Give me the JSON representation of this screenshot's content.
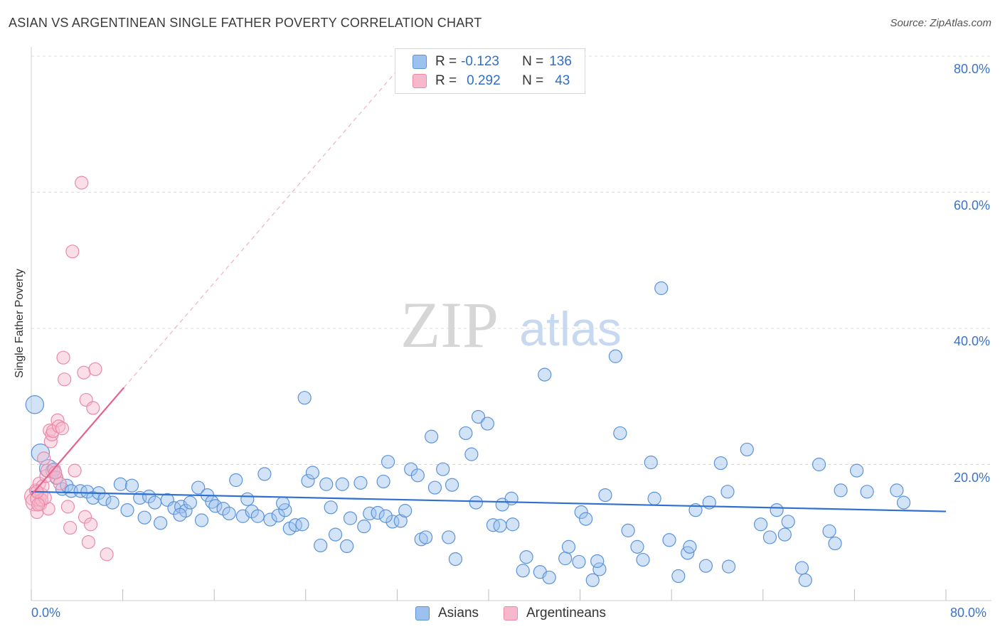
{
  "title": "ASIAN VS ARGENTINEAN SINGLE FATHER POVERTY CORRELATION CHART",
  "source": "Source: ZipAtlas.com",
  "watermark": {
    "zip": "ZIP",
    "atlas": "atlas"
  },
  "legend": {
    "rows": [
      {
        "r_label": "R =",
        "r_value": "-0.123",
        "n_label": "N =",
        "n_value": "136"
      },
      {
        "r_label": "R =",
        "r_value": "0.292",
        "n_label": "N =",
        "n_value": "43"
      }
    ]
  },
  "bottom_legend": {
    "asians": "Asians",
    "argentineans": "Argentineans"
  },
  "colors": {
    "asian_fill": "#9dc1ee",
    "asian_stroke": "#5b93d9",
    "asian_line": "#2f6fd0",
    "arg_fill": "#f7b8cb",
    "arg_stroke": "#ea8aa8",
    "arg_line": "#e5628e",
    "tick_text": "#3a72c8"
  },
  "chart_data": {
    "type": "scatter",
    "title": "ASIAN VS ARGENTINEAN SINGLE FATHER POVERTY CORRELATION CHART",
    "xlabel": "",
    "ylabel": "Single Father Poverty",
    "xlim": [
      0,
      80
    ],
    "ylim": [
      0,
      80
    ],
    "x_tick_labels": [
      "0.0%",
      "80.0%"
    ],
    "y_ticks": [
      20,
      40,
      60,
      80
    ],
    "y_tick_labels": [
      "20.0%",
      "40.0%",
      "60.0%",
      "80.0%"
    ],
    "grid": true,
    "legend_position": "top-center",
    "series": [
      {
        "name": "Asians",
        "r": -0.123,
        "n": 136,
        "trend": {
          "x": [
            0,
            80
          ],
          "y": [
            16.0,
            13.1
          ]
        },
        "points": [
          [
            0.3,
            28.8,
            1.4
          ],
          [
            0.8,
            21.7,
            1.4
          ],
          [
            1.5,
            19.4,
            1.4
          ],
          [
            1.9,
            19.1,
            1.1
          ],
          [
            2.2,
            18.0,
            1
          ],
          [
            2.7,
            16.4,
            1
          ],
          [
            3.1,
            16.9,
            1
          ],
          [
            3.5,
            16.1,
            1
          ],
          [
            4.3,
            16.1,
            1
          ],
          [
            4.9,
            16.0,
            1
          ],
          [
            5.4,
            15.1,
            1
          ],
          [
            5.9,
            15.8,
            1
          ],
          [
            6.4,
            14.9,
            1
          ],
          [
            7.1,
            14.4,
            1
          ],
          [
            7.8,
            17.1,
            1
          ],
          [
            8.4,
            13.3,
            1
          ],
          [
            8.8,
            16.9,
            1
          ],
          [
            9.5,
            15.1,
            1
          ],
          [
            9.9,
            12.2,
            1
          ],
          [
            10.3,
            15.3,
            1
          ],
          [
            10.8,
            14.4,
            1
          ],
          [
            11.3,
            11.4,
            1
          ],
          [
            11.9,
            14.8,
            1
          ],
          [
            12.5,
            13.6,
            1
          ],
          [
            13.1,
            13.8,
            1
          ],
          [
            13.5,
            13.2,
            1
          ],
          [
            13.9,
            14.4,
            1
          ],
          [
            14.6,
            16.6,
            1
          ],
          [
            14.9,
            11.8,
            1
          ],
          [
            15.4,
            15.5,
            1
          ],
          [
            15.8,
            14.5,
            1
          ],
          [
            16.1,
            13.9,
            1
          ],
          [
            16.8,
            13.5,
            1
          ],
          [
            17.3,
            12.8,
            1
          ],
          [
            17.9,
            17.7,
            1
          ],
          [
            18.5,
            12.4,
            1
          ],
          [
            18.9,
            14.9,
            1
          ],
          [
            19.3,
            13.1,
            1
          ],
          [
            19.8,
            12.4,
            1
          ],
          [
            20.4,
            18.6,
            1
          ],
          [
            20.9,
            11.9,
            1
          ],
          [
            21.6,
            12.5,
            1
          ],
          [
            22.2,
            13.3,
            1
          ],
          [
            22.6,
            10.6,
            1
          ],
          [
            23.1,
            11.1,
            1
          ],
          [
            23.7,
            11.2,
            1
          ],
          [
            23.9,
            29.8,
            1
          ],
          [
            24.2,
            17.6,
            1
          ],
          [
            24.6,
            18.8,
            1
          ],
          [
            25.3,
            8.1,
            1
          ],
          [
            25.8,
            17.1,
            1
          ],
          [
            26.2,
            13.7,
            1
          ],
          [
            26.6,
            9.7,
            1
          ],
          [
            27.2,
            17.1,
            1
          ],
          [
            27.6,
            8.0,
            1
          ],
          [
            27.9,
            12.1,
            1
          ],
          [
            28.8,
            17.3,
            1
          ],
          [
            29.1,
            10.9,
            1
          ],
          [
            29.6,
            12.8,
            1
          ],
          [
            30.3,
            12.9,
            1
          ],
          [
            30.8,
            17.5,
            1
          ],
          [
            31.2,
            20.4,
            1
          ],
          [
            31.6,
            11.6,
            1
          ],
          [
            32.3,
            11.7,
            1
          ],
          [
            32.7,
            13.2,
            1
          ],
          [
            33.2,
            19.3,
            1
          ],
          [
            33.8,
            18.4,
            1
          ],
          [
            34.1,
            9.0,
            1
          ],
          [
            34.5,
            9.3,
            1
          ],
          [
            35.0,
            24.1,
            1
          ],
          [
            35.3,
            16.6,
            1
          ],
          [
            36.0,
            19.3,
            1
          ],
          [
            36.5,
            9.3,
            1
          ],
          [
            36.8,
            17.0,
            1
          ],
          [
            37.1,
            6.1,
            1
          ],
          [
            38.0,
            24.6,
            1
          ],
          [
            38.5,
            21.5,
            1
          ],
          [
            38.9,
            14.4,
            1
          ],
          [
            39.1,
            27.0,
            1
          ],
          [
            39.9,
            26.0,
            1
          ],
          [
            40.4,
            11.1,
            1
          ],
          [
            41.0,
            11.0,
            1
          ],
          [
            41.2,
            14.1,
            1
          ],
          [
            42.1,
            11.2,
            1
          ],
          [
            43.0,
            4.4,
            1
          ],
          [
            43.3,
            6.4,
            1
          ],
          [
            44.5,
            4.2,
            1
          ],
          [
            44.9,
            33.2,
            1
          ],
          [
            45.3,
            3.4,
            1
          ],
          [
            46.7,
            6.2,
            1
          ],
          [
            47.0,
            7.9,
            1
          ],
          [
            47.9,
            5.7,
            1
          ],
          [
            48.1,
            13.0,
            1
          ],
          [
            48.5,
            12.0,
            1
          ],
          [
            49.1,
            3.0,
            1
          ],
          [
            49.7,
            4.6,
            1
          ],
          [
            50.2,
            15.5,
            1
          ],
          [
            51.1,
            35.9,
            1
          ],
          [
            51.5,
            24.6,
            1
          ],
          [
            52.2,
            10.3,
            1
          ],
          [
            53.0,
            7.9,
            1
          ],
          [
            53.5,
            6.0,
            1
          ],
          [
            54.2,
            20.3,
            1
          ],
          [
            55.1,
            45.9,
            1
          ],
          [
            55.8,
            8.9,
            1
          ],
          [
            56.6,
            3.6,
            1
          ],
          [
            57.4,
            7.0,
            1
          ],
          [
            57.6,
            7.9,
            1
          ],
          [
            58.1,
            13.3,
            1
          ],
          [
            59.0,
            5.1,
            1
          ],
          [
            60.3,
            20.2,
            1
          ],
          [
            60.9,
            16.0,
            1
          ],
          [
            61.0,
            5.0,
            1
          ],
          [
            62.6,
            22.2,
            1
          ],
          [
            63.8,
            11.2,
            1
          ],
          [
            64.6,
            9.3,
            1
          ],
          [
            65.2,
            13.3,
            1
          ],
          [
            65.9,
            9.7,
            1
          ],
          [
            66.2,
            11.6,
            1
          ],
          [
            67.4,
            4.8,
            1
          ],
          [
            67.7,
            3.0,
            1
          ],
          [
            68.9,
            20.0,
            1
          ],
          [
            69.8,
            10.2,
            1
          ],
          [
            70.3,
            8.4,
            1
          ],
          [
            70.8,
            16.2,
            1
          ],
          [
            73.1,
            16.0,
            1
          ],
          [
            75.7,
            16.2,
            1
          ],
          [
            72.2,
            19.1,
            1
          ],
          [
            76.3,
            14.4,
            1
          ],
          [
            42.0,
            15.0,
            1
          ],
          [
            13.0,
            12.6,
            1
          ],
          [
            22.0,
            14.3,
            1
          ],
          [
            49.5,
            5.8,
            1
          ],
          [
            59.3,
            14.4,
            1
          ],
          [
            31.0,
            12.4,
            1
          ],
          [
            54.5,
            15.0,
            1
          ]
        ]
      },
      {
        "name": "Argentineans",
        "r": 0.292,
        "n": 43,
        "trend": {
          "x": [
            0,
            8.1
          ],
          "y": [
            15.5,
            31.3
          ]
        },
        "points": [
          [
            0.2,
            15.3,
            1.4
          ],
          [
            0.3,
            14.5,
            1.4
          ],
          [
            0.4,
            16.2,
            1
          ],
          [
            0.5,
            13.0,
            1
          ],
          [
            0.6,
            15.0,
            1.2
          ],
          [
            0.7,
            17.2,
            1
          ],
          [
            0.8,
            14.2,
            1
          ],
          [
            0.9,
            15.6,
            1
          ],
          [
            1.0,
            16.8,
            1
          ],
          [
            1.1,
            20.9,
            1
          ],
          [
            1.3,
            18.3,
            1
          ],
          [
            1.4,
            19.1,
            1
          ],
          [
            1.5,
            13.5,
            1
          ],
          [
            1.6,
            25.0,
            1
          ],
          [
            1.7,
            23.4,
            1
          ],
          [
            1.8,
            24.4,
            1
          ],
          [
            1.9,
            24.9,
            1
          ],
          [
            2.0,
            19.3,
            1
          ],
          [
            2.2,
            18.1,
            1
          ],
          [
            2.3,
            26.5,
            1
          ],
          [
            2.4,
            25.6,
            1
          ],
          [
            2.5,
            17.2,
            1
          ],
          [
            2.7,
            25.3,
            1
          ],
          [
            2.8,
            35.7,
            1
          ],
          [
            2.9,
            32.5,
            1
          ],
          [
            3.2,
            13.8,
            1
          ],
          [
            3.4,
            10.7,
            1
          ],
          [
            3.6,
            51.3,
            1
          ],
          [
            3.8,
            19.1,
            1
          ],
          [
            4.4,
            61.4,
            1
          ],
          [
            4.6,
            33.5,
            1
          ],
          [
            4.7,
            12.3,
            1
          ],
          [
            4.8,
            29.5,
            1
          ],
          [
            5.0,
            8.6,
            1
          ],
          [
            5.2,
            11.2,
            1
          ],
          [
            5.4,
            28.3,
            1
          ],
          [
            5.6,
            34.0,
            1
          ],
          [
            6.6,
            6.8,
            1
          ],
          [
            0.9,
            14.8,
            1
          ],
          [
            1.2,
            15.1,
            1
          ],
          [
            0.5,
            16.0,
            1
          ],
          [
            2.1,
            18.8,
            1
          ],
          [
            0.6,
            14.1,
            1
          ]
        ]
      }
    ]
  }
}
